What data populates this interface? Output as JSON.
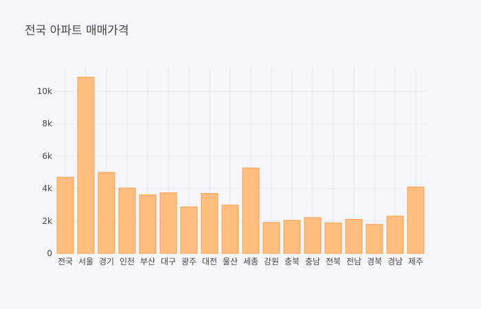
{
  "chart_data": {
    "type": "bar",
    "title": "전국 아파트 매매가격",
    "xlabel": "",
    "ylabel": "",
    "categories": [
      "전국",
      "서울",
      "경기",
      "인천",
      "부산",
      "대구",
      "광주",
      "대전",
      "울산",
      "세종",
      "강원",
      "충북",
      "충남",
      "전북",
      "전남",
      "경북",
      "경남",
      "제주"
    ],
    "values": [
      4700,
      10880,
      5000,
      4030,
      3610,
      3740,
      2870,
      3700,
      2980,
      5270,
      1910,
      2040,
      2210,
      1880,
      2100,
      1790,
      2300,
      4100
    ],
    "ylim": [
      0,
      11400
    ],
    "yticks": [
      0,
      2000,
      4000,
      6000,
      8000,
      10000
    ],
    "ytick_labels": [
      "0",
      "2k",
      "4k",
      "6k",
      "8k",
      "10k"
    ],
    "grid": true,
    "colors": {
      "bar_fill": "#ffbd7f",
      "bar_stroke": "#f5a04b",
      "grid": "#e3e6ee",
      "text": "#444444",
      "background": "#f5f6f9"
    }
  }
}
